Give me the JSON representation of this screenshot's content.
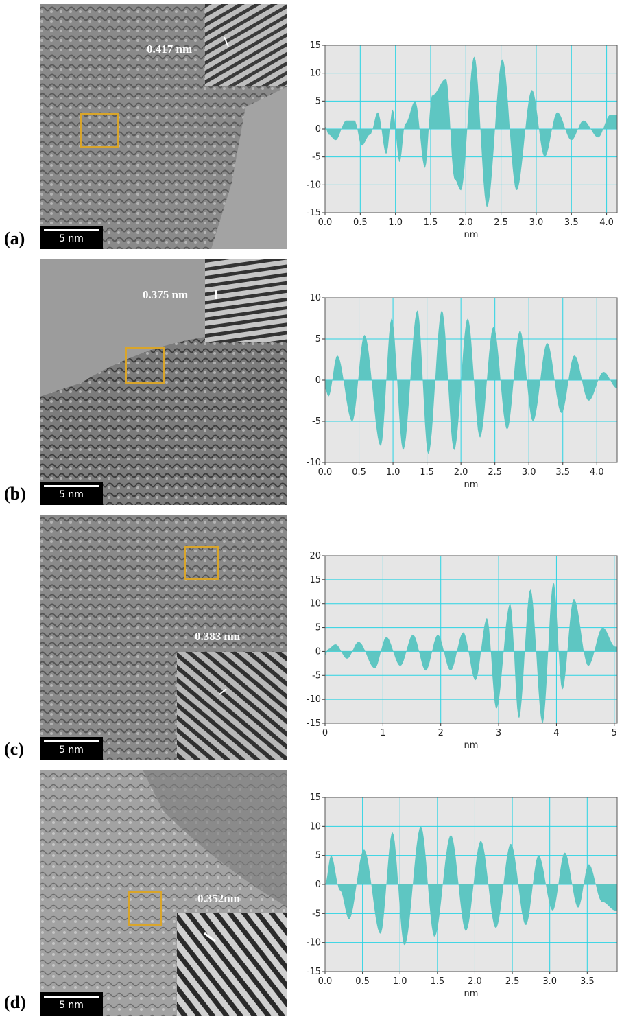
{
  "colors": {
    "plot_bg": "#e6e6e6",
    "grid": "#2ad4e4",
    "series": "#5ec6c2",
    "roi": "#d9a52a"
  },
  "panels": [
    {
      "label": "(a)",
      "spacing_label": "0.417 nm",
      "scale_label": "5 nm",
      "chart_data": {
        "type": "area",
        "xlabel": "nm",
        "xlim": [
          0.0,
          4.15
        ],
        "ylim": [
          -15,
          15
        ],
        "xticks": [
          "0.0",
          "0.5",
          "1.0",
          "1.5",
          "2.0",
          "2.5",
          "3.0",
          "3.5",
          "4.0"
        ],
        "yticks": [
          "15",
          "10",
          "5",
          "0",
          "-5",
          "-10",
          "-15"
        ],
        "series": [
          {
            "x": [
              0.0,
              0.05,
              0.15,
              0.3,
              0.42,
              0.52,
              0.64,
              0.75,
              0.87,
              0.96,
              1.06,
              1.14,
              1.28,
              1.42,
              1.52,
              1.72,
              1.84,
              1.93,
              2.12,
              2.3,
              2.52,
              2.72,
              2.94,
              3.12,
              3.3,
              3.5,
              3.67,
              3.88,
              4.05,
              4.12
            ],
            "y": [
              0.5,
              -1,
              -2,
              1.5,
              1.5,
              -3,
              -1,
              3,
              -4.5,
              3.5,
              -6,
              1,
              5,
              -7,
              6,
              9,
              -9,
              -11,
              13,
              -14,
              12.5,
              -11,
              7,
              -5,
              3,
              -2,
              1.5,
              -1.5,
              2.5,
              2.5
            ]
          }
        ]
      }
    },
    {
      "label": "(b)",
      "spacing_label": "0.375 nm",
      "scale_label": "5 nm",
      "chart_data": {
        "type": "area",
        "xlabel": "nm",
        "xlim": [
          0.0,
          4.3
        ],
        "ylim": [
          -10,
          10
        ],
        "xticks": [
          "0.0",
          "0.5",
          "1.0",
          "1.5",
          "2.0",
          "2.5",
          "3.0",
          "3.5",
          "4.0"
        ],
        "yticks": [
          "10",
          "5",
          "0",
          "-5",
          "-10"
        ],
        "series": [
          {
            "x": [
              0.0,
              0.05,
              0.18,
              0.4,
              0.58,
              0.82,
              0.98,
              1.15,
              1.36,
              1.52,
              1.72,
              1.9,
              2.1,
              2.28,
              2.48,
              2.68,
              2.87,
              3.06,
              3.27,
              3.48,
              3.67,
              3.88,
              4.1,
              4.3
            ],
            "y": [
              -1,
              -2,
              3,
              -5,
              5.5,
              -8,
              7.5,
              -8.5,
              8.5,
              -9,
              8.5,
              -8.5,
              7.5,
              -7,
              6.5,
              -6,
              6,
              -5,
              4.5,
              -4,
              3,
              -2.5,
              1,
              -1
            ]
          }
        ]
      }
    },
    {
      "label": "(c)",
      "spacing_label": "0.383 nm",
      "scale_label": "5 nm",
      "chart_data": {
        "type": "area",
        "xlabel": "nm",
        "xlim": [
          0,
          5.05
        ],
        "ylim": [
          -15,
          20
        ],
        "xticks": [
          "0",
          "1",
          "2",
          "3",
          "4",
          "5"
        ],
        "yticks": [
          "20",
          "15",
          "10",
          "5",
          "0",
          "-5",
          "-10",
          "-15"
        ],
        "series": [
          {
            "x": [
              0.0,
              0.05,
              0.18,
              0.38,
              0.58,
              0.86,
              1.06,
              1.3,
              1.52,
              1.74,
              1.95,
              2.17,
              2.39,
              2.6,
              2.8,
              2.96,
              3.2,
              3.35,
              3.55,
              3.76,
              3.95,
              4.1,
              4.3,
              4.55,
              4.8,
              5.02
            ],
            "y": [
              -1,
              0.5,
              1.5,
              -1.5,
              2,
              -3.5,
              3,
              -3,
              3.5,
              -4,
              3.5,
              -4,
              4,
              -6,
              7,
              -12,
              10,
              -14,
              13,
              -15,
              14.5,
              -8,
              11,
              -3,
              5,
              1
            ]
          }
        ]
      }
    },
    {
      "label": "(d)",
      "spacing_label": "0.352nm",
      "scale_label": "5 nm",
      "chart_data": {
        "type": "area",
        "xlabel": "nm",
        "xlim": [
          0.0,
          3.9
        ],
        "ylim": [
          -15,
          15
        ],
        "xticks": [
          "0.0",
          "0.5",
          "1.0",
          "1.5",
          "2.0",
          "2.5",
          "3.0",
          "3.5"
        ],
        "yticks": [
          "15",
          "10",
          "5",
          "0",
          "-5",
          "-10",
          "-15"
        ],
        "series": [
          {
            "x": [
              0.0,
              0.08,
              0.2,
              0.32,
              0.52,
              0.74,
              0.9,
              1.06,
              1.28,
              1.46,
              1.68,
              1.88,
              2.08,
              2.28,
              2.48,
              2.68,
              2.85,
              3.04,
              3.2,
              3.38,
              3.52,
              3.7,
              3.88
            ],
            "y": [
              0,
              5,
              -1,
              -6,
              6,
              -8.5,
              9,
              -10.5,
              10,
              -9,
              8.5,
              -8,
              7.5,
              -7.5,
              7,
              -7,
              5,
              -4.5,
              5.5,
              -4,
              3.5,
              -3,
              -4.5
            ]
          }
        ]
      }
    }
  ]
}
